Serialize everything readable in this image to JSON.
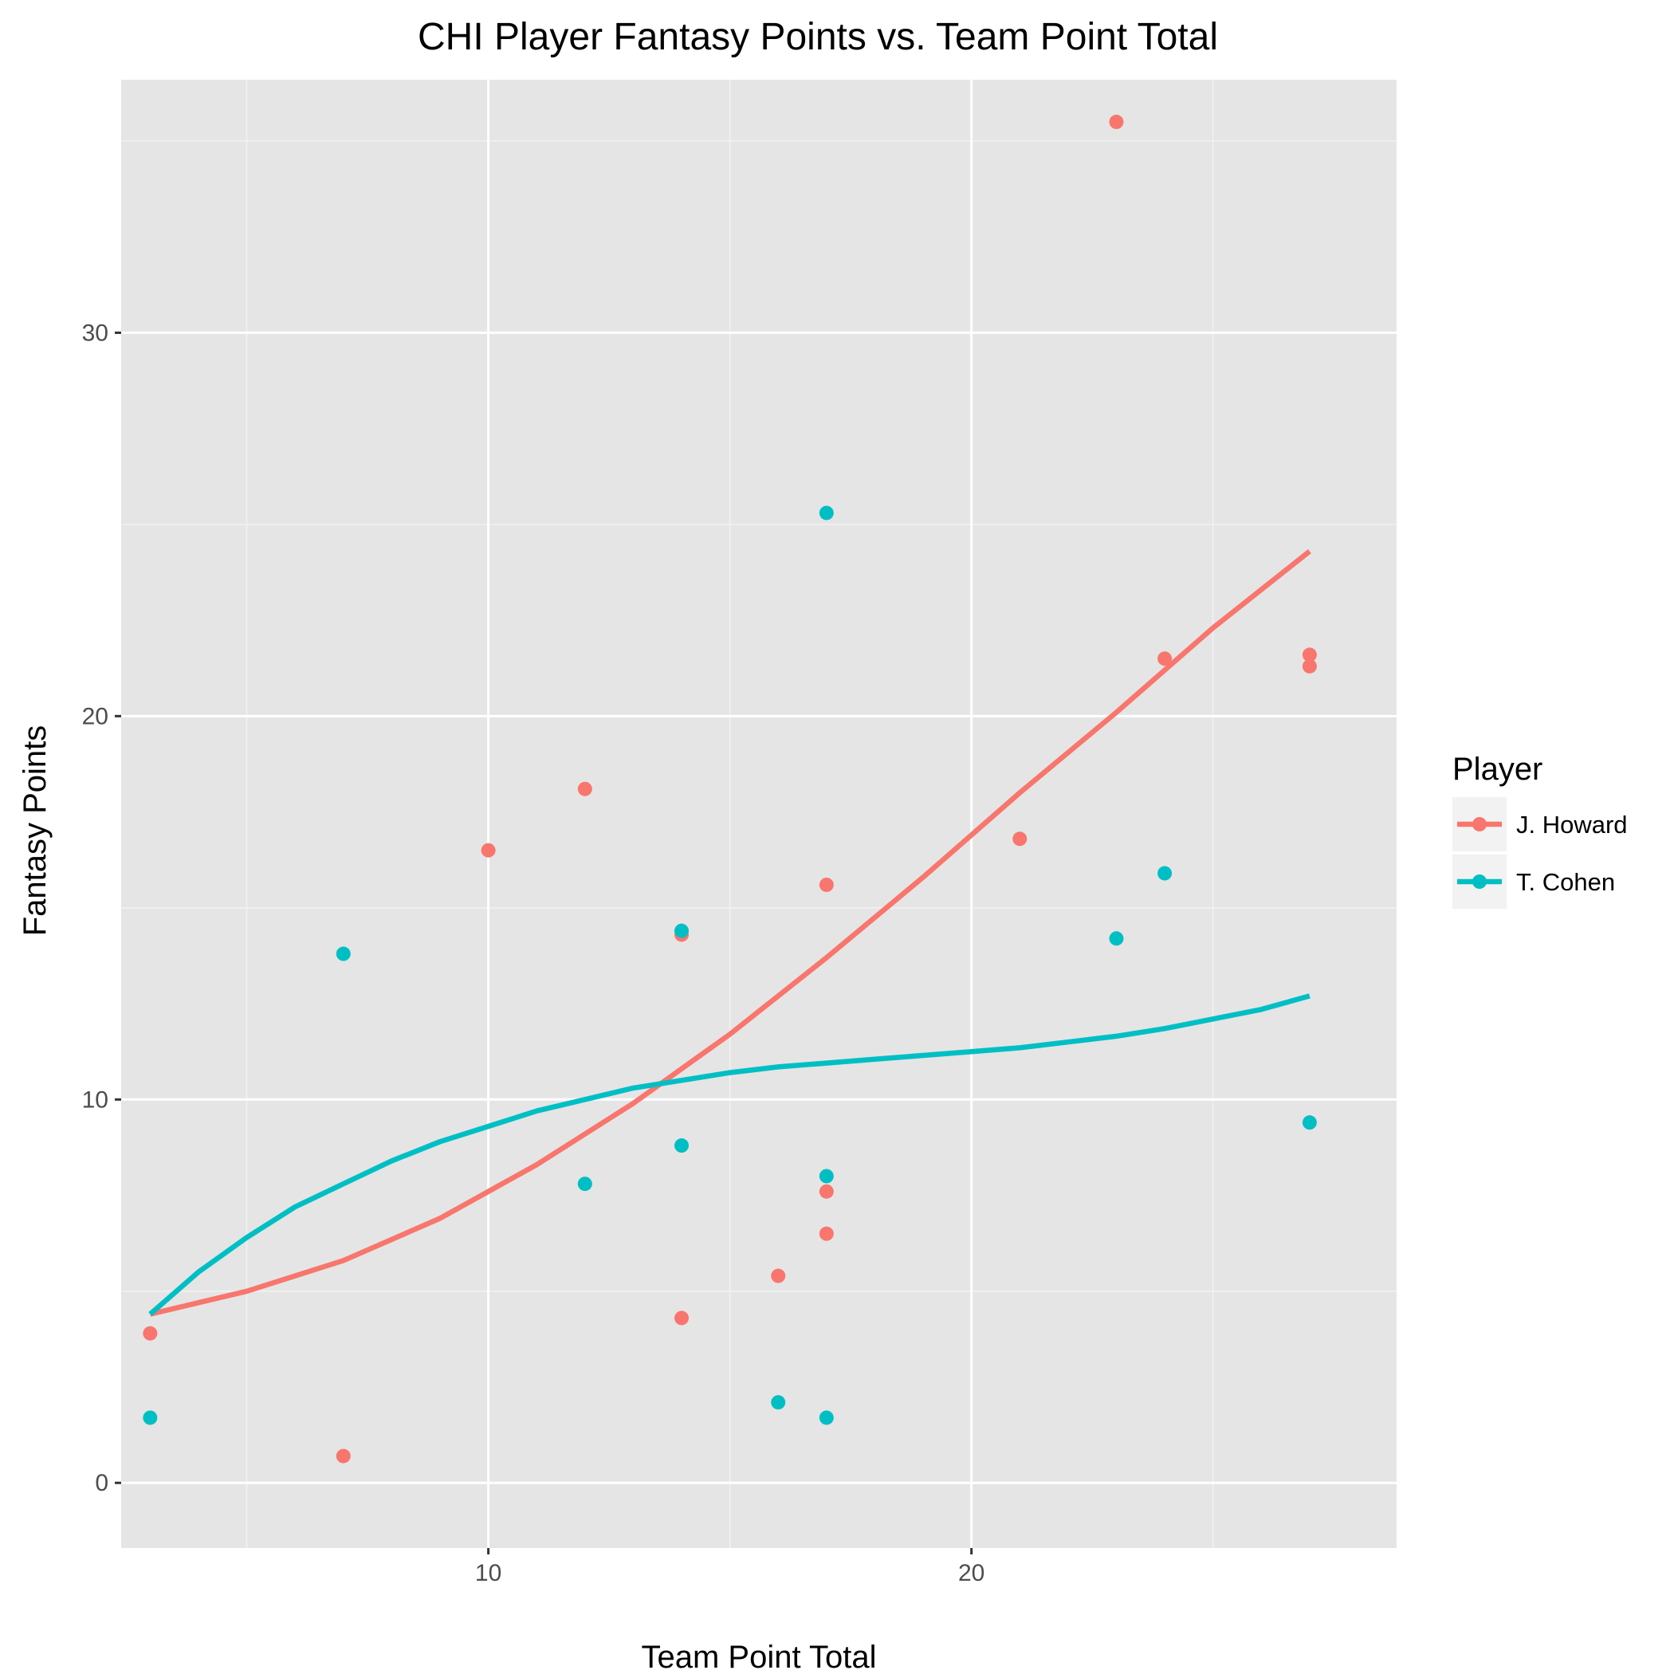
{
  "chart_data": {
    "type": "scatter",
    "title": "CHI Player Fantasy Points vs. Team Point Total",
    "xlabel": "Team Point Total",
    "ylabel": "Fantasy Points",
    "xlim": [
      2.4,
      28.8
    ],
    "ylim": [
      -1.7,
      36.6
    ],
    "x_ticks": [
      10,
      20
    ],
    "x_tick_labels": [
      "10",
      "20"
    ],
    "y_ticks": [
      0,
      10,
      20,
      30
    ],
    "y_tick_labels": [
      "0",
      "10",
      "20",
      "30"
    ],
    "grid": true,
    "legend": {
      "title": "Player",
      "position": "right"
    },
    "series": [
      {
        "name": "J. Howard",
        "color": "#F8766D",
        "points": [
          {
            "x": 3,
            "y": 3.9
          },
          {
            "x": 7,
            "y": 0.7
          },
          {
            "x": 10,
            "y": 16.5
          },
          {
            "x": 12,
            "y": 18.1
          },
          {
            "x": 14,
            "y": 14.3
          },
          {
            "x": 14,
            "y": 4.3
          },
          {
            "x": 16,
            "y": 5.4
          },
          {
            "x": 17,
            "y": 15.6
          },
          {
            "x": 17,
            "y": 7.6
          },
          {
            "x": 17,
            "y": 6.5
          },
          {
            "x": 21,
            "y": 16.8
          },
          {
            "x": 23,
            "y": 35.5
          },
          {
            "x": 24,
            "y": 21.5
          },
          {
            "x": 27,
            "y": 21.6
          },
          {
            "x": 27,
            "y": 21.3
          }
        ],
        "smooth": [
          {
            "x": 3,
            "y": 4.4
          },
          {
            "x": 5,
            "y": 5.0
          },
          {
            "x": 7,
            "y": 5.8
          },
          {
            "x": 9,
            "y": 6.9
          },
          {
            "x": 11,
            "y": 8.3
          },
          {
            "x": 13,
            "y": 9.9
          },
          {
            "x": 15,
            "y": 11.7
          },
          {
            "x": 17,
            "y": 13.7
          },
          {
            "x": 19,
            "y": 15.8
          },
          {
            "x": 21,
            "y": 18.0
          },
          {
            "x": 23,
            "y": 20.1
          },
          {
            "x": 25,
            "y": 22.3
          },
          {
            "x": 27,
            "y": 24.3
          }
        ]
      },
      {
        "name": "T. Cohen",
        "color": "#00BFC4",
        "points": [
          {
            "x": 3,
            "y": 1.7
          },
          {
            "x": 7,
            "y": 13.8
          },
          {
            "x": 12,
            "y": 7.8
          },
          {
            "x": 14,
            "y": 14.4
          },
          {
            "x": 14,
            "y": 8.8
          },
          {
            "x": 16,
            "y": 2.1
          },
          {
            "x": 17,
            "y": 25.3
          },
          {
            "x": 17,
            "y": 8.0
          },
          {
            "x": 17,
            "y": 1.7
          },
          {
            "x": 23,
            "y": 14.2
          },
          {
            "x": 24,
            "y": 15.9
          },
          {
            "x": 27,
            "y": 9.4
          }
        ],
        "smooth": [
          {
            "x": 3,
            "y": 4.4
          },
          {
            "x": 4,
            "y": 5.5
          },
          {
            "x": 5,
            "y": 6.4
          },
          {
            "x": 6,
            "y": 7.2
          },
          {
            "x": 7,
            "y": 7.8
          },
          {
            "x": 8,
            "y": 8.4
          },
          {
            "x": 9,
            "y": 8.9
          },
          {
            "x": 10,
            "y": 9.3
          },
          {
            "x": 11,
            "y": 9.7
          },
          {
            "x": 12,
            "y": 10.0
          },
          {
            "x": 13,
            "y": 10.3
          },
          {
            "x": 14,
            "y": 10.5
          },
          {
            "x": 15,
            "y": 10.7
          },
          {
            "x": 16,
            "y": 10.85
          },
          {
            "x": 17,
            "y": 10.95
          },
          {
            "x": 18,
            "y": 11.05
          },
          {
            "x": 19,
            "y": 11.15
          },
          {
            "x": 20,
            "y": 11.25
          },
          {
            "x": 21,
            "y": 11.35
          },
          {
            "x": 22,
            "y": 11.5
          },
          {
            "x": 23,
            "y": 11.65
          },
          {
            "x": 24,
            "y": 11.85
          },
          {
            "x": 25,
            "y": 12.1
          },
          {
            "x": 26,
            "y": 12.35
          },
          {
            "x": 27,
            "y": 12.7
          }
        ]
      }
    ]
  }
}
